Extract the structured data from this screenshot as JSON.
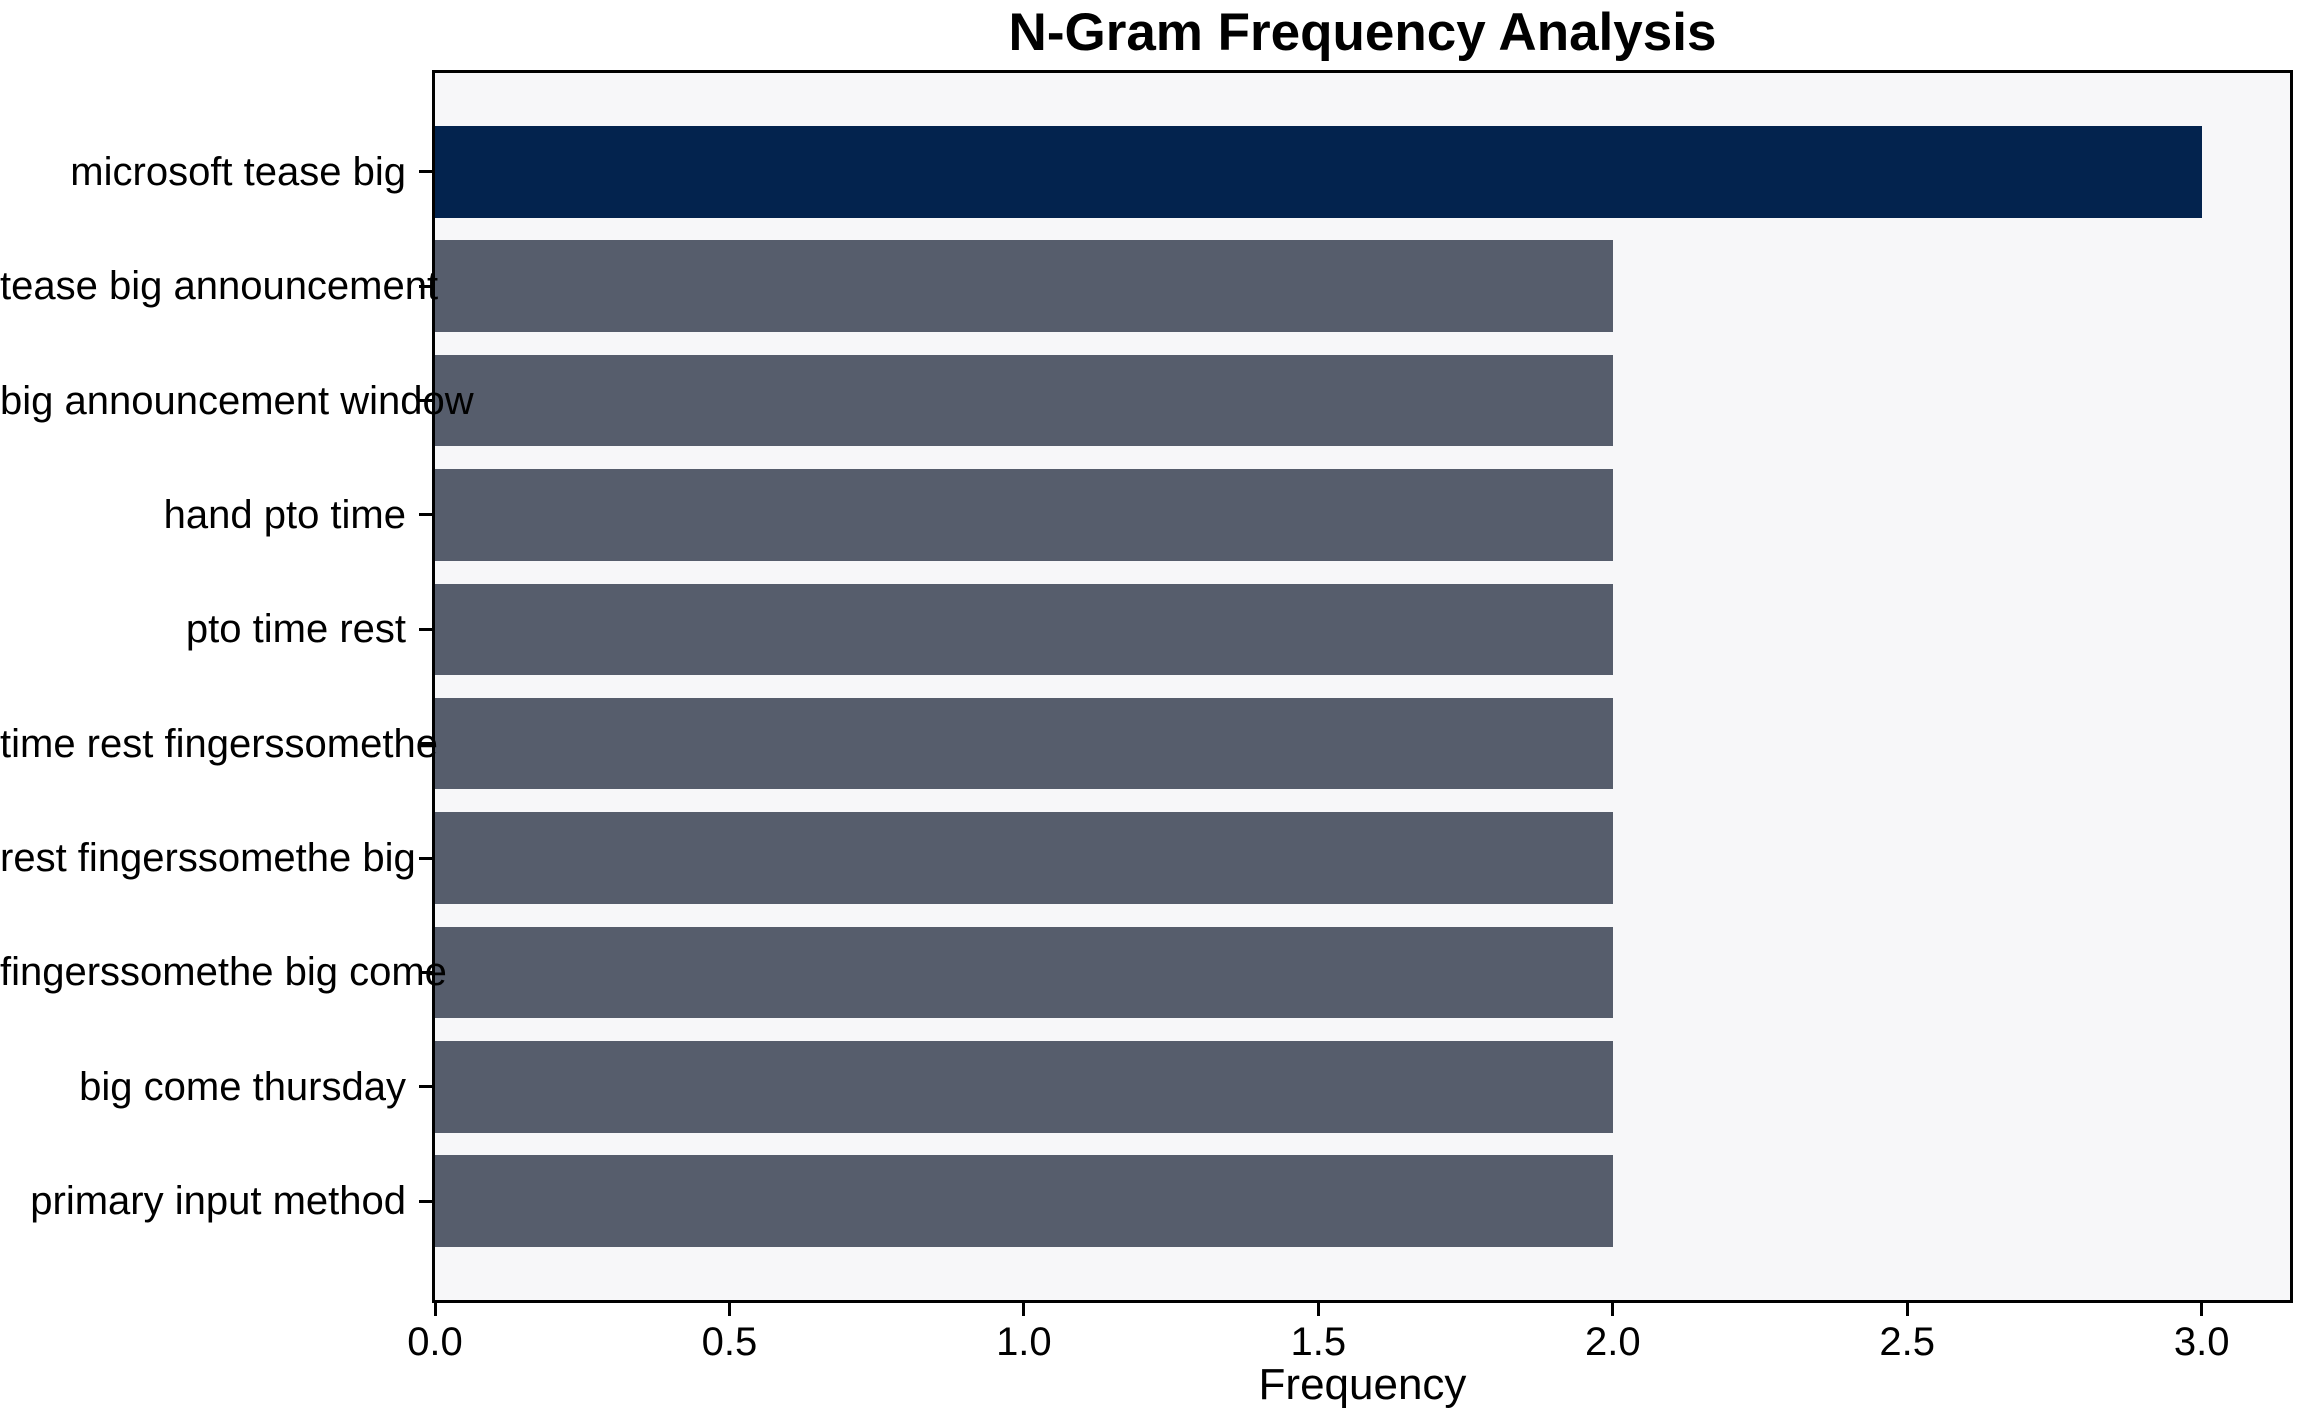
{
  "chart_data": {
    "type": "bar",
    "orientation": "horizontal",
    "title": "N-Gram Frequency Analysis",
    "xlabel": "Frequency",
    "ylabel": "",
    "categories": [
      "microsoft tease big",
      "tease big announcement",
      "big announcement window",
      "hand pto time",
      "pto time rest",
      "time rest fingerssomethe",
      "rest fingerssomethe big",
      "fingerssomethe big come",
      "big come thursday",
      "primary input method"
    ],
    "values": [
      3,
      2,
      2,
      2,
      2,
      2,
      2,
      2,
      2,
      2
    ],
    "bar_colors": [
      "#03234e",
      "#565d6c",
      "#565d6c",
      "#565d6c",
      "#565d6c",
      "#565d6c",
      "#565d6c",
      "#565d6c",
      "#565d6c",
      "#565d6c"
    ],
    "xlim": [
      0,
      3.15
    ],
    "xticks": [
      {
        "value": 0.0,
        "label": "0.0"
      },
      {
        "value": 0.5,
        "label": "0.5"
      },
      {
        "value": 1.0,
        "label": "1.0"
      },
      {
        "value": 1.5,
        "label": "1.5"
      },
      {
        "value": 2.0,
        "label": "2.0"
      },
      {
        "value": 2.5,
        "label": "2.5"
      },
      {
        "value": 3.0,
        "label": "3.0"
      }
    ],
    "grid": false,
    "legend": null,
    "colors": {
      "highlight_bar": "#03234e",
      "default_bar": "#565d6c",
      "plot_background": "#f7f7f9",
      "figure_background": "#ffffff",
      "spine": "#000000",
      "text": "#000000"
    }
  }
}
